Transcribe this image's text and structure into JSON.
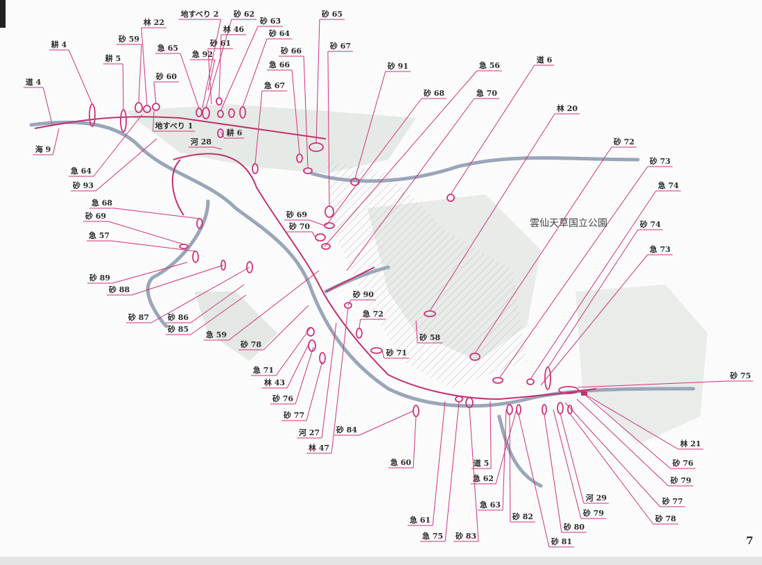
{
  "park_name": "雲仙天草国立公園",
  "page_number": "7",
  "labels": [
    "耕 4",
    "耕 5",
    "砂 59",
    "林 22",
    "急 65",
    "地すべり 2",
    "砂 62",
    "砂 63",
    "林 46",
    "砂 61",
    "急 92",
    "砂 64",
    "砂 65",
    "砂 66",
    "砂 67",
    "急 66",
    "急 67",
    "砂 60",
    "道 4",
    "地すべり 1",
    "耕 6",
    "河 28",
    "海 9",
    "急 64",
    "砂 93",
    "砂 91",
    "急 56",
    "道 6",
    "砂 68",
    "急 70",
    "林 20",
    "砂 72",
    "砂 73",
    "急 74",
    "砂 74",
    "急 73",
    "急 68",
    "砂 69",
    "急 57",
    "砂 89",
    "砂 88",
    "砂 87",
    "砂 86",
    "砂 85",
    "急 59",
    "砂 69",
    "砂 70",
    "砂 78",
    "砂 90",
    "急 72",
    "砂 58",
    "砂 71",
    "急 71",
    "林 43",
    "砂 76",
    "砂 77",
    "河 27",
    "砂 84",
    "林 47",
    "急 60",
    "道 5",
    "急 62",
    "急 63",
    "急 61",
    "急 75",
    "砂 83",
    "砂 82",
    "砂 81",
    "砂 80",
    "砂 79",
    "河 29",
    "砂 78",
    "砂 77",
    "砂 79",
    "砂 76",
    "林 21",
    "砂 75"
  ]
}
